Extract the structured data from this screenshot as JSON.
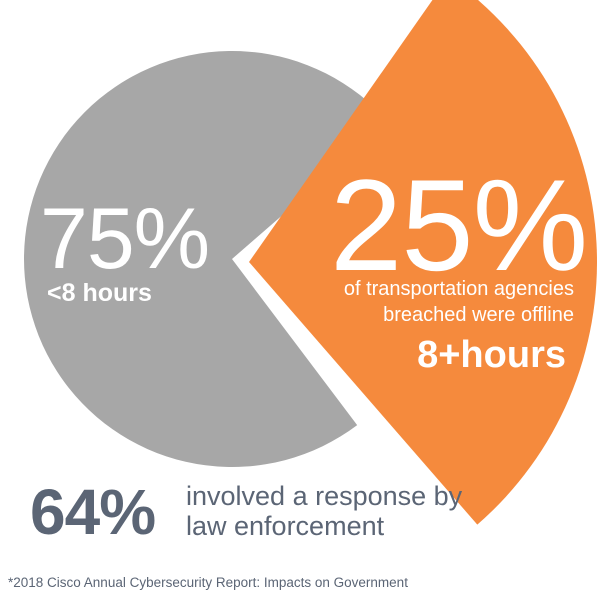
{
  "chart_data": {
    "type": "pie",
    "slices": [
      {
        "label_value": "75%",
        "label_text": "<8 hours",
        "value": 75,
        "color": "#a7a7a7"
      },
      {
        "label_value": "25%",
        "label_text": "of transportation agencies breached were offline",
        "label_strong": "8+hours",
        "value": 25,
        "color": "#f58a3d"
      }
    ]
  },
  "stat": {
    "value": "64%",
    "text": "involved a response by law enforcement",
    "color": "#5b6575"
  },
  "footnote": "*2018 Cisco Annual Cybersecurity Report: Impacts on Government"
}
